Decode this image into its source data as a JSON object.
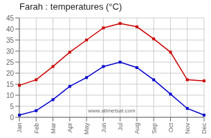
{
  "chart_data": {
    "type": "line",
    "title": "Farah : temperatures (°C)",
    "categories": [
      "Jan",
      "Feb",
      "Mar",
      "Apr",
      "May",
      "Jun",
      "Jul",
      "Aug",
      "Sep",
      "Oct",
      "Nov",
      "Dec"
    ],
    "series": [
      {
        "color": "#cc0000",
        "marker": "square",
        "values": [
          14.5,
          17,
          23,
          29.5,
          35,
          40.5,
          42.5,
          41,
          35.5,
          29.5,
          17,
          16.5
        ]
      },
      {
        "color": "#0000cc",
        "marker": "square",
        "values": [
          1,
          3,
          8,
          14,
          18,
          23,
          25,
          22.5,
          17,
          10.5,
          4,
          1
        ]
      }
    ],
    "ylim": [
      0,
      45
    ],
    "yticks": [
      0,
      5,
      10,
      15,
      20,
      25,
      30,
      35,
      40,
      45
    ],
    "grid": true,
    "annotations": [
      "www.allmetsat.com"
    ]
  }
}
